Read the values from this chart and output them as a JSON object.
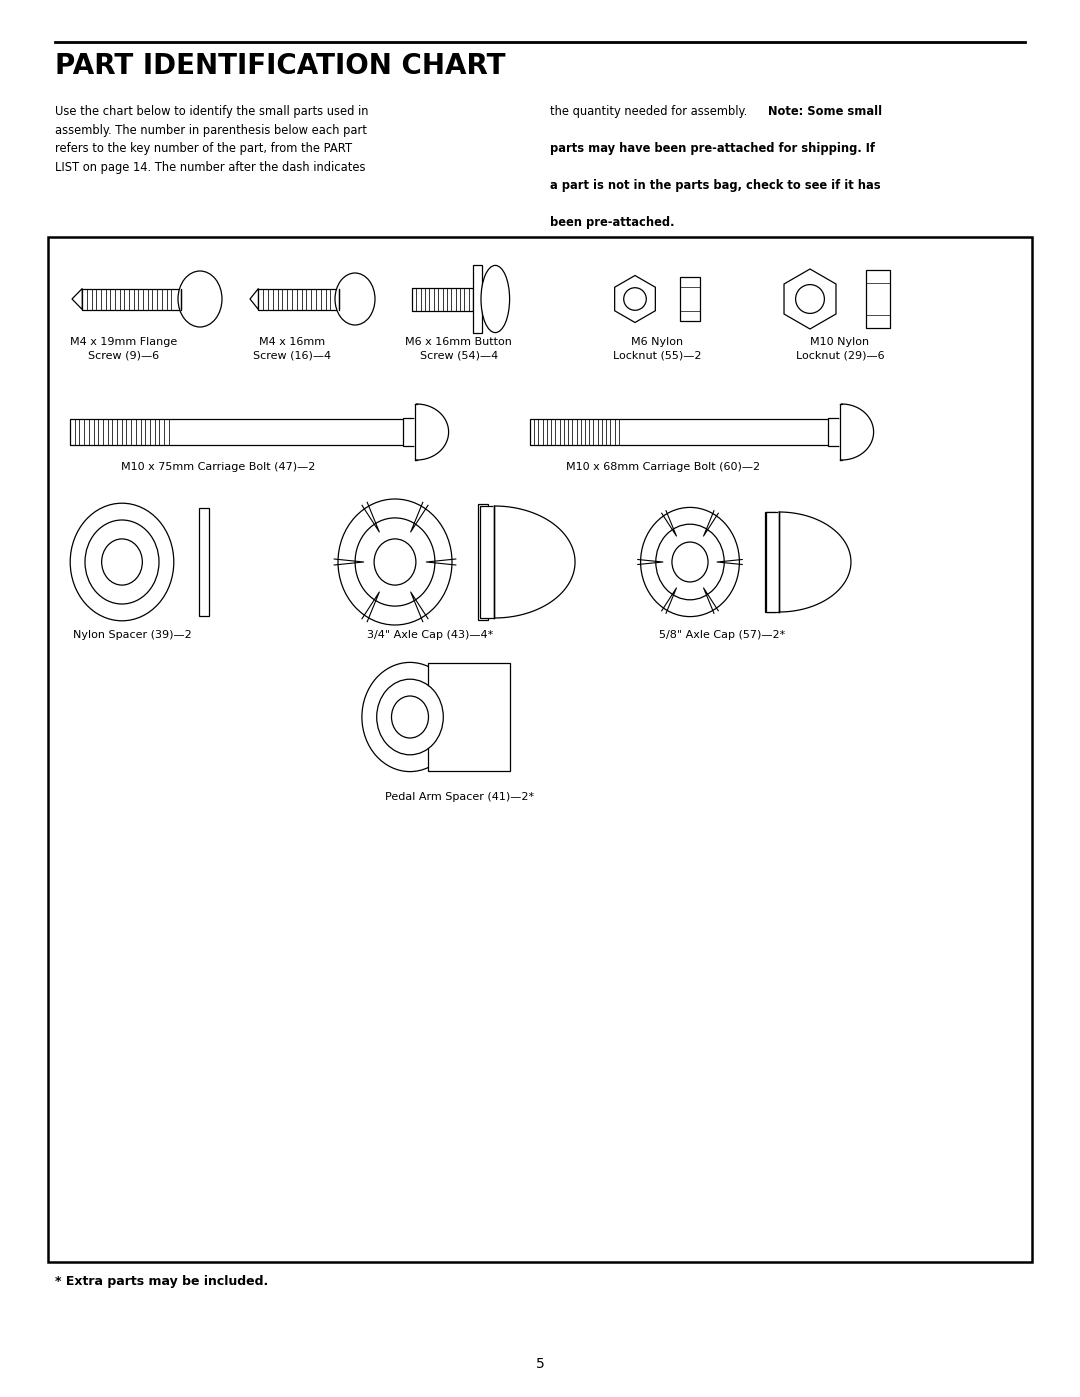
{
  "title": "PART IDENTIFICATION CHART",
  "intro_left": "Use the chart below to identify the small parts used in\nassembly. The number in parenthesis below each part\nrefers to the key number of the part, from the PART\nLIST on page 14. The number after the dash indicates",
  "intro_right_normal": "the quantity needed for assembly. ",
  "intro_right_bold": "Note: Some small\nparts may have been pre-attached for shipping. If\na part is not in the parts bag, check to see if it has\nbeen pre-attached.",
  "footer": "* Extra parts may be included.",
  "page_num": "5",
  "bg": "#ffffff",
  "labels": {
    "flange_screw": "M4 x 19mm Flange\nScrew (9)—6",
    "m4_screw": "M4 x 16mm\nScrew (16)—4",
    "button_screw": "M6 x 16mm Button\nScrew (54)—4",
    "m6_nut": "M6 Nylon\nLocknut (55)—2",
    "m10_nut": "M10 Nylon\nLocknut (29)—6",
    "bolt_75": "M10 x 75mm Carriage Bolt (47)—2",
    "bolt_68": "M10 x 68mm Carriage Bolt (60)—2",
    "nylon_spacer": "Nylon Spacer (39)—2",
    "axle_cap_34": "3/4\" Axle Cap (43)—4*",
    "axle_cap_58": "5/8\" Axle Cap (57)—2*",
    "pedal_spacer": "Pedal Arm Spacer (41)—2*"
  }
}
